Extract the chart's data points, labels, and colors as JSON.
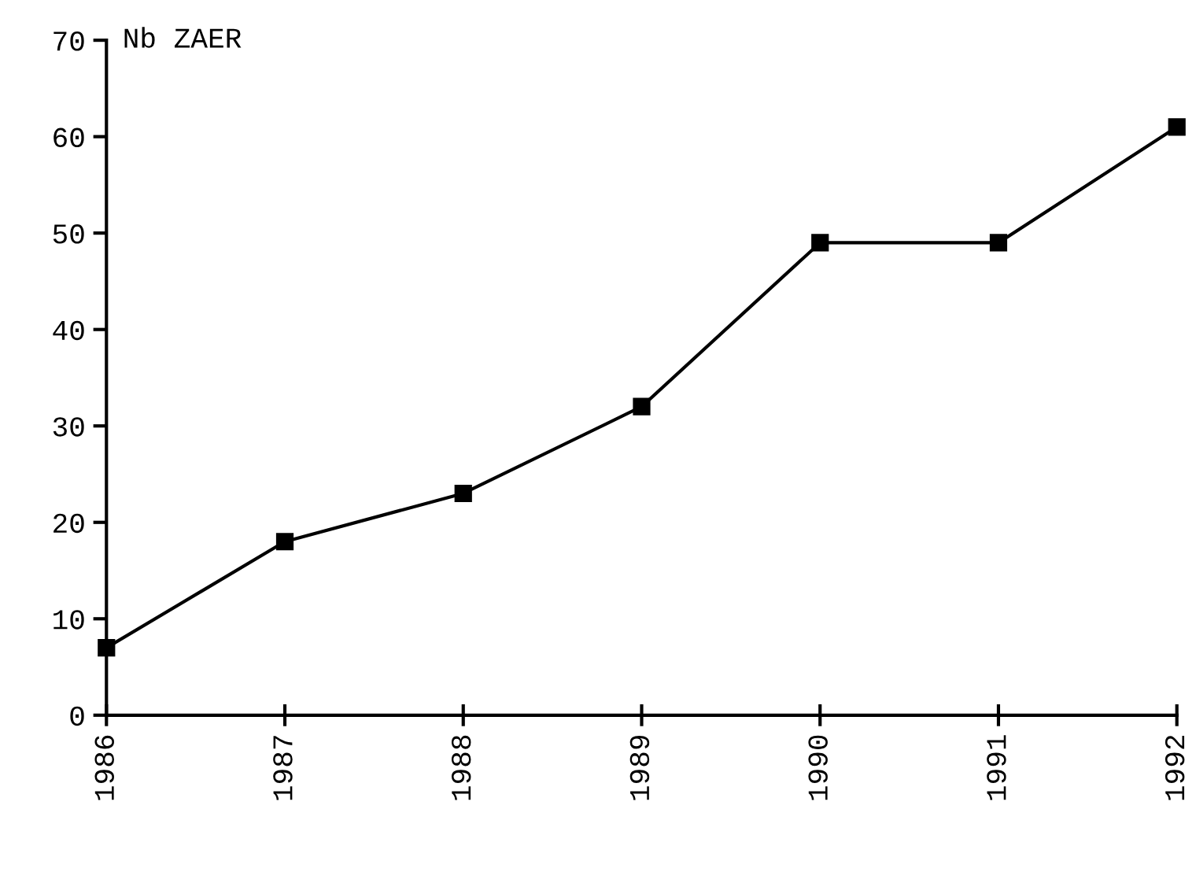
{
  "chart_data": {
    "type": "line",
    "ylabel": "Nb ZAER",
    "x": [
      1986,
      1987,
      1988,
      1989,
      1990,
      1991,
      1992
    ],
    "series": [
      {
        "color": "#000000",
        "values": [
          7,
          18,
          23,
          32,
          49,
          49,
          61
        ]
      }
    ],
    "xlim": [
      1986,
      1992
    ],
    "xticks": [
      1986,
      1987,
      1988,
      1989,
      1990,
      1991,
      1992
    ],
    "ylim": [
      0,
      70
    ],
    "yticks": [
      0,
      10,
      20,
      30,
      40,
      50,
      60,
      70
    ],
    "marker": "square",
    "line_style": "solid",
    "grid": false,
    "legend": false
  }
}
